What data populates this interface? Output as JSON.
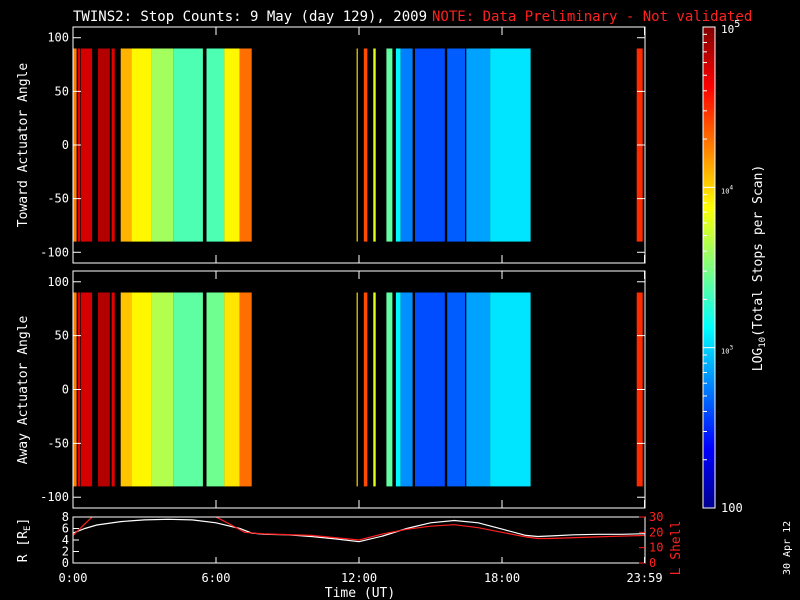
{
  "title": "TWINS2: Stop Counts:  9 May (day 129), 2009",
  "note": "NOTE: Data Preliminary - Not validated",
  "date_stamp": "30 Apr 12",
  "colors": {
    "white": "#ffffff",
    "red": "#ff2020",
    "background": "#000000"
  },
  "chart_data": [
    {
      "type": "heatmap",
      "ylabel": "Toward Actuator Angle",
      "ylim": [
        -110,
        110
      ],
      "y_ticks": [
        -100,
        -50,
        0,
        50,
        100
      ],
      "y_tick_labels": [
        "-100",
        "-50",
        "0",
        "50",
        "100"
      ],
      "xlim": [
        0,
        24
      ],
      "data_y_range": [
        -90,
        90
      ],
      "blocks": [
        {
          "t0": 0.0,
          "t1": 0.15,
          "log10": 4.25
        },
        {
          "t0": 0.2,
          "t1": 0.3,
          "log10": 4.7
        },
        {
          "t0": 0.33,
          "t1": 0.8,
          "log10": 4.75
        },
        {
          "t0": 1.05,
          "t1": 1.55,
          "log10": 4.85
        },
        {
          "t0": 1.62,
          "t1": 1.75,
          "log10": 4.7
        },
        {
          "t0": 2.0,
          "t1": 2.45,
          "log10": 4.1
        },
        {
          "t0": 2.45,
          "t1": 3.3,
          "log10": 3.9
        },
        {
          "t0": 3.3,
          "t1": 4.2,
          "log10": 3.6
        },
        {
          "t0": 4.2,
          "t1": 5.45,
          "log10": 3.35
        },
        {
          "t0": 5.6,
          "t1": 6.35,
          "log10": 3.35
        },
        {
          "t0": 6.35,
          "t1": 7.0,
          "log10": 3.9
        },
        {
          "t0": 7.0,
          "t1": 7.5,
          "log10": 4.3
        },
        {
          "t0": 11.9,
          "t1": 11.95,
          "log10": 4.0
        },
        {
          "t0": 12.2,
          "t1": 12.35,
          "log10": 4.4
        },
        {
          "t0": 12.6,
          "t1": 12.7,
          "log10": 3.8
        },
        {
          "t0": 13.15,
          "t1": 13.4,
          "log10": 3.4
        },
        {
          "t0": 13.55,
          "t1": 13.75,
          "log10": 3.1
        },
        {
          "t0": 13.75,
          "t1": 14.25,
          "log10": 2.75
        },
        {
          "t0": 14.35,
          "t1": 15.6,
          "log10": 2.6
        },
        {
          "t0": 15.7,
          "t1": 16.45,
          "log10": 2.65
        },
        {
          "t0": 16.5,
          "t1": 17.5,
          "log10": 2.85
        },
        {
          "t0": 17.5,
          "t1": 19.2,
          "log10": 3.05
        },
        {
          "t0": 23.65,
          "t1": 23.9,
          "log10": 4.5
        }
      ]
    },
    {
      "type": "heatmap",
      "ylabel": "Away Actuator Angle",
      "ylim": [
        -110,
        110
      ],
      "y_ticks": [
        -100,
        -50,
        0,
        50,
        100
      ],
      "y_tick_labels": [
        "-100",
        "-50",
        "0",
        "50",
        "100"
      ],
      "xlim": [
        0,
        24
      ],
      "data_y_range": [
        -90,
        90
      ],
      "blocks": [
        {
          "t0": 0.0,
          "t1": 0.15,
          "log10": 4.25
        },
        {
          "t0": 0.2,
          "t1": 0.3,
          "log10": 4.7
        },
        {
          "t0": 0.33,
          "t1": 0.8,
          "log10": 4.75
        },
        {
          "t0": 1.05,
          "t1": 1.55,
          "log10": 4.85
        },
        {
          "t0": 1.62,
          "t1": 1.75,
          "log10": 4.7
        },
        {
          "t0": 2.0,
          "t1": 2.45,
          "log10": 4.05
        },
        {
          "t0": 2.45,
          "t1": 3.3,
          "log10": 3.9
        },
        {
          "t0": 3.3,
          "t1": 4.2,
          "log10": 3.65
        },
        {
          "t0": 4.2,
          "t1": 5.45,
          "log10": 3.4
        },
        {
          "t0": 5.6,
          "t1": 6.35,
          "log10": 3.45
        },
        {
          "t0": 6.35,
          "t1": 7.0,
          "log10": 3.95
        },
        {
          "t0": 7.0,
          "t1": 7.5,
          "log10": 4.3
        },
        {
          "t0": 11.9,
          "t1": 11.95,
          "log10": 4.0
        },
        {
          "t0": 12.2,
          "t1": 12.35,
          "log10": 4.4
        },
        {
          "t0": 12.6,
          "t1": 12.7,
          "log10": 3.8
        },
        {
          "t0": 13.15,
          "t1": 13.4,
          "log10": 3.4
        },
        {
          "t0": 13.55,
          "t1": 13.75,
          "log10": 3.1
        },
        {
          "t0": 13.75,
          "t1": 14.25,
          "log10": 2.8
        },
        {
          "t0": 14.35,
          "t1": 15.6,
          "log10": 2.6
        },
        {
          "t0": 15.7,
          "t1": 16.45,
          "log10": 2.65
        },
        {
          "t0": 16.5,
          "t1": 17.5,
          "log10": 2.85
        },
        {
          "t0": 17.5,
          "t1": 19.2,
          "log10": 3.05
        },
        {
          "t0": 23.65,
          "t1": 23.9,
          "log10": 4.5
        }
      ]
    },
    {
      "type": "line",
      "ylabel_left": "R [R",
      "ylabel_left_sub": "E",
      "ylabel_left_end": "]",
      "ylabel_right": "L Shell",
      "xlabel": "Time (UT)",
      "xlim": [
        0,
        24
      ],
      "x_ticks": [
        0,
        6,
        12,
        18,
        23.98
      ],
      "x_tick_labels": [
        "0:00",
        "6:00",
        "12:00",
        "18:00",
        "23:59"
      ],
      "ylim_left": [
        0,
        8
      ],
      "y_ticks_left": [
        0,
        2,
        4,
        6,
        8
      ],
      "y_tick_labels_left": [
        "0",
        "2",
        "4",
        "6",
        "8"
      ],
      "ylim_right": [
        0,
        30
      ],
      "y_ticks_right": [
        0,
        10,
        20,
        30
      ],
      "y_tick_labels_right": [
        "0",
        "10",
        "20",
        "30"
      ],
      "series": [
        {
          "axis": "left",
          "color": "#ffffff",
          "x": [
            0,
            0.5,
            1,
            2,
            3,
            4,
            5,
            6,
            7,
            7.5,
            8,
            9,
            10,
            11,
            12,
            13,
            14,
            15,
            16,
            17,
            18,
            19,
            19.5,
            20,
            21,
            22,
            23,
            24
          ],
          "y": [
            5.2,
            6.0,
            6.6,
            7.2,
            7.5,
            7.6,
            7.5,
            7.0,
            6.0,
            5.2,
            5.0,
            4.9,
            4.6,
            4.2,
            3.7,
            4.7,
            6.0,
            7.0,
            7.4,
            7.0,
            5.9,
            4.8,
            4.6,
            4.7,
            4.9,
            5.0,
            5.0,
            5.1
          ]
        },
        {
          "axis": "right",
          "color": "#ff2020",
          "x": [
            0,
            0.4,
            0.8,
            1.2,
            5.6,
            6.0,
            6.5,
            7.2,
            8,
            10,
            12,
            13,
            14,
            15,
            16,
            17,
            18,
            19,
            19.5,
            20,
            22,
            24
          ],
          "y": [
            18,
            24,
            30,
            32,
            32,
            30,
            26,
            20,
            19,
            18,
            15,
            19,
            22,
            24,
            25,
            23,
            20,
            17,
            16,
            16,
            17,
            18
          ]
        }
      ]
    },
    {
      "type": "colorbar",
      "label_prefix": "LOG",
      "label_sub": "10",
      "label_suffix": "(Total Stops per Scan)",
      "range_log10": [
        2,
        5
      ],
      "major_ticks_log10": [
        2,
        3,
        4,
        5
      ],
      "tick_label_bottom": "100",
      "tick_labels_pow": [
        {
          "base": "10",
          "exp": "3"
        },
        {
          "base": "10",
          "exp": "4"
        },
        {
          "base": "10",
          "exp": "5"
        }
      ]
    }
  ]
}
